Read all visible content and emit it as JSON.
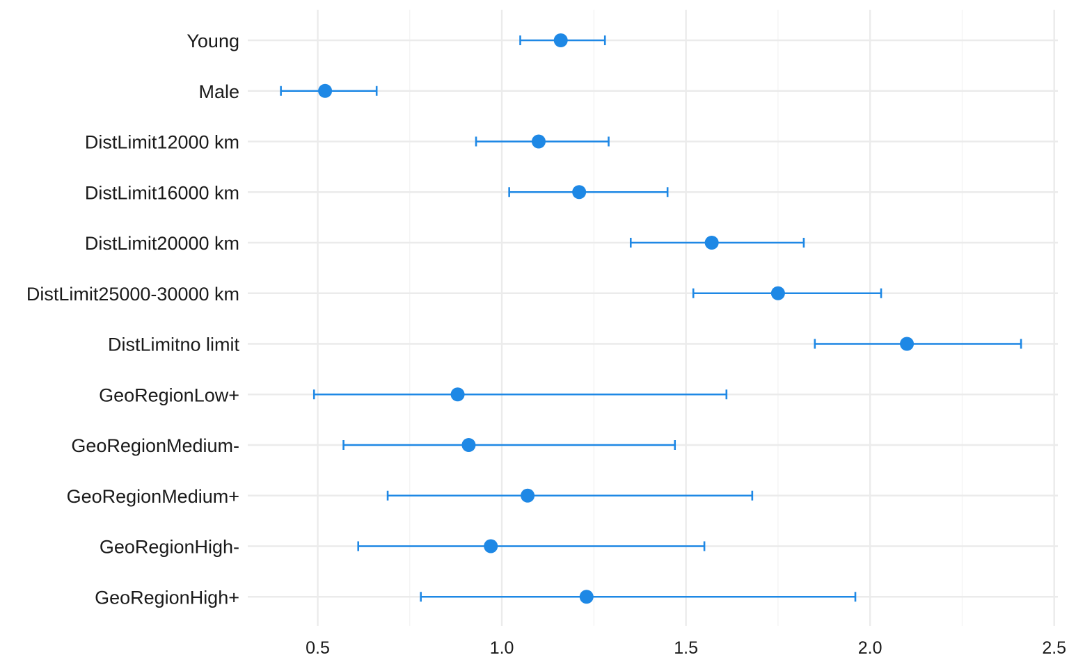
{
  "chart_data": {
    "type": "scatter",
    "style": "forest-plot",
    "title": "",
    "xlabel": "",
    "ylabel": "",
    "xlim": [
      0.31,
      2.51
    ],
    "x_ticks": [
      0.5,
      1.0,
      1.5,
      2.0,
      2.5
    ],
    "x_tick_labels": [
      "0.5",
      "1.0",
      "1.5",
      "2.0",
      "2.5"
    ],
    "grid": true,
    "legend": "none",
    "colors": {
      "point": "#1E88E5",
      "errorbar": "#1E88E5",
      "grid_major": "#EBEBEB",
      "grid_minor": "#F2F2F2",
      "text": "#1A1A1A"
    },
    "categories": [
      "Young",
      "Male",
      "DistLimit12000 km",
      "DistLimit16000 km",
      "DistLimit20000 km",
      "DistLimit25000-30000 km",
      "DistLimitno limit",
      "GeoRegionLow+",
      "GeoRegionMedium-",
      "GeoRegionMedium+",
      "GeoRegionHigh-",
      "GeoRegionHigh+"
    ],
    "series": [
      {
        "estimate": [
          1.16,
          0.52,
          1.1,
          1.21,
          1.57,
          1.75,
          2.1,
          0.88,
          0.91,
          1.07,
          0.97,
          1.23
        ],
        "lower": [
          1.05,
          0.4,
          0.93,
          1.02,
          1.35,
          1.52,
          1.85,
          0.49,
          0.57,
          0.69,
          0.61,
          0.78
        ],
        "upper": [
          1.28,
          0.66,
          1.29,
          1.45,
          1.82,
          2.03,
          2.41,
          1.61,
          1.47,
          1.68,
          1.55,
          1.96
        ]
      }
    ]
  }
}
